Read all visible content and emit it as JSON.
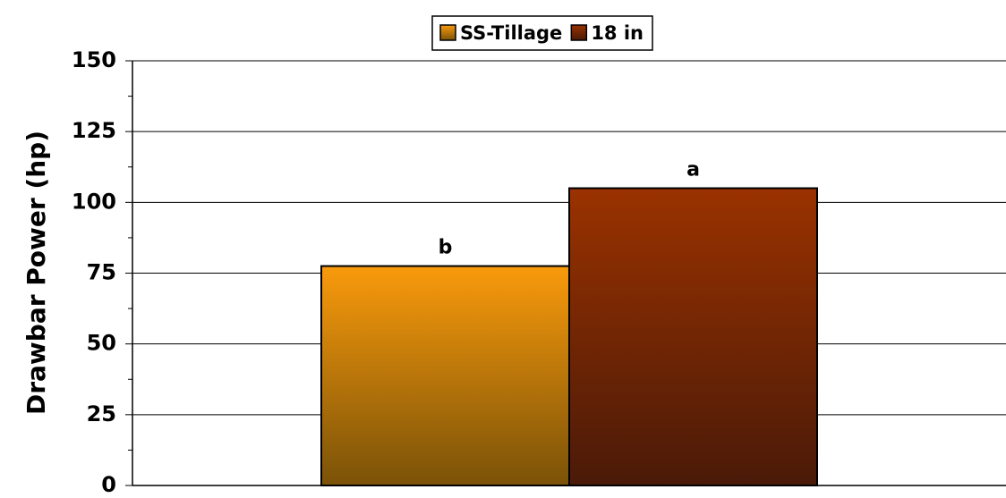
{
  "chart_data": {
    "type": "bar",
    "categories": [
      null
    ],
    "series": [
      {
        "name": "SS-Tillage",
        "color": "#f99a0c",
        "gradient_to": "#7a5208",
        "values": [
          77.5
        ],
        "letters": [
          "b"
        ]
      },
      {
        "name": "18 in",
        "color": "#9a3200",
        "gradient_to": "#4a1a08",
        "values": [
          105
        ],
        "letters": [
          "a"
        ]
      }
    ],
    "ylabel": "Drawbar Power (hp)",
    "ylim": [
      0,
      150
    ],
    "yticks": [
      0,
      25,
      50,
      75,
      100,
      125,
      150
    ],
    "yticks_minor": [
      12.5,
      37.5,
      62.5,
      87.5,
      112.5,
      137.5
    ],
    "grid": true,
    "legend": "top"
  }
}
